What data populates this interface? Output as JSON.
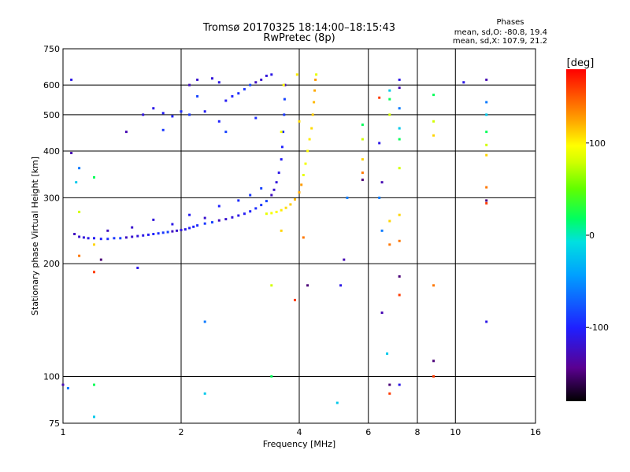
{
  "chart_data": {
    "type": "scatter",
    "title": "Tromsø 20170325 18:14:00–18:15:43",
    "subtitle": "RwPretec (8p)",
    "xlabel": "Frequency [MHz]",
    "ylabel": "Stationary phase Virtual Height [km]",
    "x_scale": "log2",
    "y_scale": "log",
    "xlim": [
      1,
      16
    ],
    "ylim": [
      75,
      750
    ],
    "x_ticks": [
      {
        "value": 1,
        "label": "1"
      },
      {
        "value": 2,
        "label": "2"
      },
      {
        "value": 4,
        "label": "4"
      },
      {
        "value": 6,
        "label": "6"
      },
      {
        "value": 8,
        "label": "8"
      },
      {
        "value": 10,
        "label": "10"
      },
      {
        "value": 16,
        "label": "16"
      }
    ],
    "x_grid": [
      2,
      4,
      6,
      8,
      10
    ],
    "y_ticks": [
      {
        "value": 75,
        "label": "75"
      },
      {
        "value": 100,
        "label": "100"
      },
      {
        "value": 200,
        "label": "200"
      },
      {
        "value": 300,
        "label": "300"
      },
      {
        "value": 400,
        "label": "400"
      },
      {
        "value": 500,
        "label": "500"
      },
      {
        "value": 600,
        "label": "600"
      },
      {
        "value": 750,
        "label": "750"
      }
    ],
    "y_grid": [
      100,
      200,
      300,
      400,
      500,
      600
    ],
    "stats_header": "Phases",
    "stats": [
      "mean, sd,O: -80.8, 19.4",
      "mean, sd,X: 107.9, 21.2"
    ],
    "colorbar": {
      "label": "[deg]",
      "range": [
        -180,
        180
      ],
      "ticks": [
        {
          "value": 100,
          "label": "100"
        },
        {
          "value": 0,
          "label": "0"
        },
        {
          "value": -100,
          "label": "-100"
        }
      ]
    },
    "series": [
      {
        "trace": "O",
        "phase": -105,
        "points": [
          [
            1.07,
            240
          ],
          [
            1.1,
            236
          ],
          [
            1.13,
            235
          ],
          [
            1.16,
            234
          ],
          [
            1.2,
            234
          ],
          [
            1.25,
            233
          ],
          [
            1.3,
            233
          ],
          [
            1.35,
            234
          ],
          [
            1.4,
            234
          ],
          [
            1.45,
            235
          ],
          [
            1.5,
            236
          ],
          [
            1.55,
            237
          ],
          [
            1.6,
            238
          ],
          [
            1.65,
            239
          ],
          [
            1.7,
            240
          ],
          [
            1.75,
            241
          ],
          [
            1.8,
            242
          ],
          [
            1.85,
            243
          ],
          [
            1.9,
            244
          ],
          [
            1.95,
            245
          ],
          [
            2.0,
            246
          ],
          [
            2.05,
            247
          ],
          [
            2.1,
            249
          ],
          [
            2.15,
            251
          ],
          [
            2.2,
            253
          ],
          [
            2.3,
            256
          ],
          [
            2.4,
            258
          ],
          [
            2.5,
            261
          ],
          [
            2.6,
            263
          ],
          [
            2.7,
            266
          ],
          [
            2.8,
            269
          ],
          [
            2.9,
            272
          ],
          [
            3.0,
            276
          ],
          [
            3.1,
            281
          ],
          [
            3.2,
            287
          ],
          [
            3.3,
            294
          ],
          [
            3.4,
            305
          ],
          [
            3.45,
            315
          ],
          [
            3.5,
            330
          ],
          [
            3.55,
            350
          ],
          [
            3.6,
            380
          ],
          [
            3.62,
            410
          ],
          [
            3.64,
            450
          ],
          [
            3.66,
            500
          ],
          [
            3.67,
            550
          ],
          [
            3.68,
            600
          ],
          [
            1.5,
            250
          ],
          [
            1.7,
            262
          ],
          [
            1.9,
            255
          ],
          [
            2.1,
            270
          ],
          [
            2.5,
            285
          ],
          [
            2.8,
            295
          ],
          [
            3.0,
            305
          ],
          [
            3.2,
            318
          ],
          [
            1.3,
            245
          ],
          [
            2.3,
            265
          ],
          [
            1.6,
            500
          ],
          [
            1.7,
            520
          ],
          [
            1.8,
            505
          ],
          [
            1.9,
            495
          ],
          [
            2.0,
            510
          ],
          [
            2.1,
            500
          ],
          [
            2.2,
            560
          ],
          [
            2.1,
            600
          ],
          [
            2.2,
            620
          ],
          [
            2.4,
            625
          ],
          [
            2.5,
            610
          ],
          [
            2.6,
            545
          ],
          [
            2.7,
            560
          ],
          [
            2.8,
            570
          ],
          [
            2.9,
            585
          ],
          [
            3.0,
            600
          ],
          [
            3.1,
            610
          ],
          [
            3.2,
            620
          ],
          [
            3.3,
            635
          ],
          [
            3.4,
            640
          ],
          [
            2.3,
            510
          ],
          [
            2.5,
            480
          ],
          [
            3.1,
            490
          ],
          [
            1.8,
            455
          ],
          [
            2.6,
            450
          ]
        ]
      },
      {
        "trace": "X",
        "phase": 108,
        "points": [
          [
            3.3,
            272
          ],
          [
            3.4,
            273
          ],
          [
            3.5,
            275
          ],
          [
            3.6,
            278
          ],
          [
            3.7,
            282
          ],
          [
            3.8,
            288
          ],
          [
            3.9,
            297
          ],
          [
            4.0,
            310
          ],
          [
            4.05,
            325
          ],
          [
            4.1,
            345
          ],
          [
            4.15,
            370
          ],
          [
            4.2,
            400
          ],
          [
            4.25,
            430
          ],
          [
            4.3,
            460
          ],
          [
            4.33,
            500
          ],
          [
            4.36,
            540
          ],
          [
            4.38,
            580
          ],
          [
            4.4,
            620
          ],
          [
            4.42,
            640
          ],
          [
            3.6,
            450
          ],
          [
            3.65,
            600
          ],
          [
            3.95,
            640
          ],
          [
            4.0,
            480
          ]
        ]
      },
      {
        "trace": "scatter",
        "phase": null,
        "points": [
          [
            1.05,
            620
          ],
          [
            1.05,
            395
          ],
          [
            1.1,
            360
          ],
          [
            1.08,
            330
          ],
          [
            1.2,
            340
          ],
          [
            1.1,
            275
          ],
          [
            1.2,
            225
          ],
          [
            1.1,
            210
          ],
          [
            1.25,
            205
          ],
          [
            1.2,
            190
          ],
          [
            1.55,
            195
          ],
          [
            1.45,
            450
          ],
          [
            2.3,
            140
          ],
          [
            2.3,
            90
          ],
          [
            3.4,
            100
          ],
          [
            3.4,
            175
          ],
          [
            3.6,
            245
          ],
          [
            4.1,
            235
          ],
          [
            4.2,
            175
          ],
          [
            3.9,
            160
          ],
          [
            5.1,
            175
          ],
          [
            5.2,
            205
          ],
          [
            5.3,
            300
          ],
          [
            5.0,
            85
          ],
          [
            5.8,
            470
          ],
          [
            5.8,
            430
          ],
          [
            5.8,
            380
          ],
          [
            5.8,
            350
          ],
          [
            5.8,
            335
          ],
          [
            6.4,
            555
          ],
          [
            6.4,
            420
          ],
          [
            6.5,
            330
          ],
          [
            6.4,
            300
          ],
          [
            6.8,
            580
          ],
          [
            6.8,
            550
          ],
          [
            6.8,
            500
          ],
          [
            6.8,
            260
          ],
          [
            6.8,
            225
          ],
          [
            6.8,
            95
          ],
          [
            6.8,
            90
          ],
          [
            7.2,
            620
          ],
          [
            7.2,
            590
          ],
          [
            7.2,
            520
          ],
          [
            7.2,
            460
          ],
          [
            7.2,
            430
          ],
          [
            7.2,
            360
          ],
          [
            7.2,
            270
          ],
          [
            7.2,
            230
          ],
          [
            7.2,
            185
          ],
          [
            7.2,
            165
          ],
          [
            7.2,
            95
          ],
          [
            6.5,
            148
          ],
          [
            6.5,
            245
          ],
          [
            6.7,
            115
          ],
          [
            8.8,
            565
          ],
          [
            8.8,
            480
          ],
          [
            8.8,
            440
          ],
          [
            8.8,
            175
          ],
          [
            8.8,
            110
          ],
          [
            8.8,
            100
          ],
          [
            10.5,
            610
          ],
          [
            12.0,
            620
          ],
          [
            12.0,
            540
          ],
          [
            12.0,
            500
          ],
          [
            12.0,
            450
          ],
          [
            12.0,
            415
          ],
          [
            12.0,
            390
          ],
          [
            12.0,
            320
          ],
          [
            12.0,
            295
          ],
          [
            12.0,
            290
          ],
          [
            12.0,
            140
          ],
          [
            1.0,
            95
          ],
          [
            1.03,
            93
          ],
          [
            1.2,
            78
          ],
          [
            1.2,
            95
          ]
        ]
      }
    ]
  }
}
